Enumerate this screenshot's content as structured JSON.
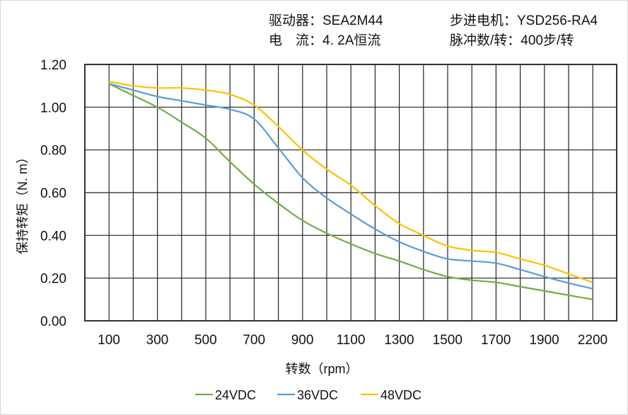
{
  "header": {
    "driver": "驱动器：SEA2M44",
    "current": "电　流：4. 2A恒流",
    "motor": "步进电机：YSD256-RA4",
    "pulses": "脉冲数/转：400步/转"
  },
  "chart_data": {
    "type": "line",
    "title": "",
    "xlabel": "转数（rpm）",
    "ylabel": "保持转矩（N. m）",
    "categories": [
      100,
      200,
      300,
      400,
      500,
      600,
      700,
      800,
      900,
      1000,
      1100,
      1200,
      1300,
      1400,
      1500,
      1600,
      1700,
      1800,
      1900,
      2000,
      2200
    ],
    "x_tick_labels": [
      "100",
      "300",
      "500",
      "700",
      "900",
      "1100",
      "1300",
      "1500",
      "1700",
      "1900",
      "2200"
    ],
    "y_tick_labels": [
      "0.00",
      "0.20",
      "0.40",
      "0.60",
      "0.80",
      "1.00",
      "1.20"
    ],
    "ylim": [
      0,
      1.2
    ],
    "grid": true,
    "legend": "bottom",
    "series": [
      {
        "name": "24VDC",
        "color": "#70ad47",
        "values": [
          1.11,
          1.055,
          1.0,
          0.93,
          0.855,
          0.745,
          0.64,
          0.55,
          0.47,
          0.41,
          0.36,
          0.315,
          0.28,
          0.24,
          0.207,
          0.19,
          0.18,
          0.16,
          0.14,
          0.12,
          0.1
        ]
      },
      {
        "name": "36VDC",
        "color": "#5b9bd5",
        "values": [
          1.11,
          1.08,
          1.05,
          1.03,
          1.01,
          0.99,
          0.945,
          0.81,
          0.67,
          0.575,
          0.5,
          0.43,
          0.37,
          0.325,
          0.29,
          0.28,
          0.27,
          0.24,
          0.207,
          0.177,
          0.15
        ]
      },
      {
        "name": "48VDC",
        "color": "#ffc000",
        "values": [
          1.12,
          1.1,
          1.09,
          1.09,
          1.08,
          1.06,
          1.01,
          0.91,
          0.8,
          0.71,
          0.635,
          0.54,
          0.455,
          0.4,
          0.35,
          0.33,
          0.32,
          0.29,
          0.26,
          0.22,
          0.18
        ]
      }
    ]
  }
}
